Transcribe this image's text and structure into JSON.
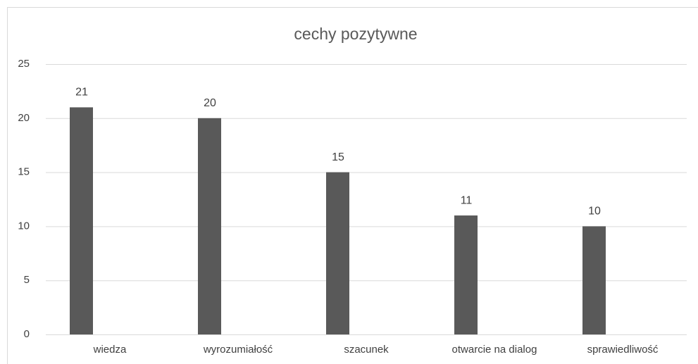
{
  "chart_data": {
    "type": "bar",
    "title": "cechy pozytywne",
    "categories": [
      "wiedza",
      "wyrozumiałość",
      "szacunek",
      "otwarcie na dialog",
      "sprawiedliwość"
    ],
    "values": [
      21,
      20,
      15,
      11,
      10
    ],
    "color": "#595959",
    "ylim": [
      0,
      25
    ],
    "yticks": [
      0,
      5,
      10,
      15,
      20,
      25
    ],
    "grid": true
  }
}
